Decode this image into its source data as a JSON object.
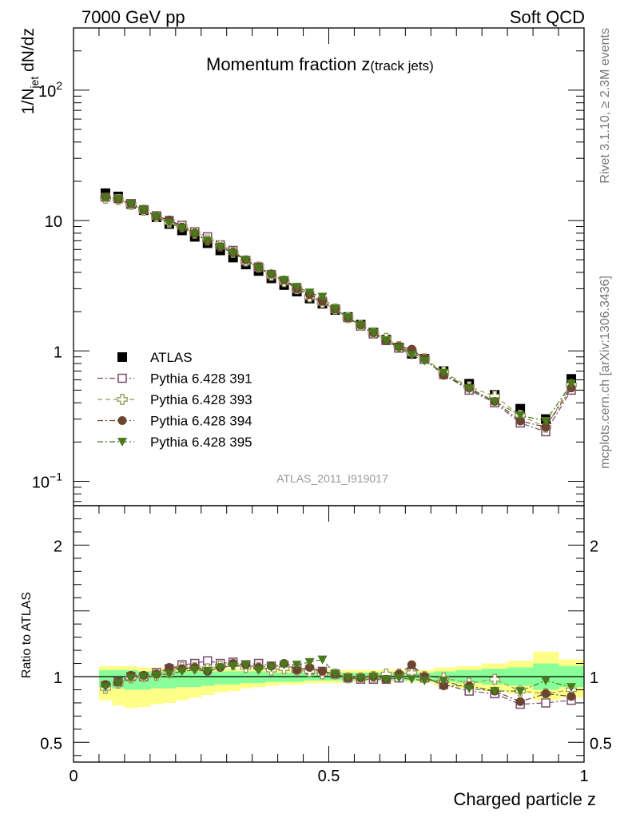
{
  "header": {
    "left": "7000 GeV pp",
    "right": "Soft QCD"
  },
  "side": {
    "rivet": "Rivet 3.1.10, ≥ 2.3M events",
    "mcplots": "mcplots.cern.ch [arXiv:1306.3436]"
  },
  "chart_data": [
    {
      "type": "scatter",
      "panel": "main",
      "title_main": "Momentum fraction z",
      "title_sub": "(track jets)",
      "ylabel": "1/N_jet dN/dz",
      "ylabel_base": "1/N",
      "ylabel_sub": "jet",
      "ylabel_tail": " dN/dz",
      "yscale": "log",
      "ylim": [
        0.065,
        300
      ],
      "xlim": [
        0,
        1
      ],
      "yticks": [
        {
          "v": 0.1,
          "base": "10",
          "exp": "−1"
        },
        {
          "v": 1,
          "base": "1",
          "exp": ""
        },
        {
          "v": 10,
          "base": "10",
          "exp": ""
        },
        {
          "v": 100,
          "base": "10",
          "exp": "2"
        }
      ],
      "watermark": "ATLAS_2011_I919017",
      "x": [
        0.0625,
        0.0875,
        0.1125,
        0.1375,
        0.1625,
        0.1875,
        0.2125,
        0.2375,
        0.2625,
        0.2875,
        0.3125,
        0.3375,
        0.3625,
        0.3875,
        0.4125,
        0.4375,
        0.4625,
        0.4875,
        0.5125,
        0.5375,
        0.5625,
        0.5875,
        0.6125,
        0.6375,
        0.6625,
        0.6875,
        0.725,
        0.775,
        0.825,
        0.875,
        0.925,
        0.975
      ],
      "series": [
        {
          "name": "ATLAS",
          "color": "#000000",
          "marker": "square-filled",
          "line": "none",
          "values": [
            16.2,
            15.3,
            13.4,
            12.0,
            10.6,
            9.4,
            8.4,
            7.5,
            6.7,
            5.9,
            5.2,
            4.6,
            4.1,
            3.6,
            3.2,
            2.85,
            2.52,
            2.3,
            2.06,
            1.82,
            1.59,
            1.38,
            1.22,
            1.06,
            0.95,
            0.87,
            0.7,
            0.56,
            0.46,
            0.36,
            0.3,
            0.61
          ]
        },
        {
          "name": "Pythia 6.428 391",
          "color": "#7a4a6e",
          "marker": "square-open",
          "line": "dashdot",
          "values": [
            15.1,
            14.7,
            13.5,
            12.1,
            10.9,
            10.0,
            9.2,
            8.2,
            7.5,
            6.5,
            5.9,
            4.9,
            4.4,
            3.85,
            3.45,
            3.0,
            2.65,
            2.4,
            2.1,
            1.8,
            1.55,
            1.35,
            1.2,
            1.05,
            0.98,
            0.86,
            0.66,
            0.5,
            0.4,
            0.28,
            0.24,
            0.5
          ]
        },
        {
          "name": "Pythia 6.428 393",
          "color": "#9a9a55",
          "marker": "cross-open",
          "line": "dashed",
          "values": [
            14.8,
            14.5,
            13.3,
            12.0,
            10.7,
            9.7,
            9.0,
            8.0,
            7.1,
            6.4,
            5.7,
            4.9,
            4.4,
            3.8,
            3.4,
            3.0,
            2.6,
            2.35,
            2.1,
            1.8,
            1.57,
            1.38,
            1.25,
            1.08,
            0.98,
            0.87,
            0.69,
            0.53,
            0.45,
            0.32,
            0.26,
            0.55
          ]
        },
        {
          "name": "Pythia 6.428 394",
          "color": "#6b4530",
          "marker": "circle-filled",
          "line": "dashdot",
          "values": [
            15.2,
            14.6,
            13.5,
            12.1,
            10.8,
            10.1,
            8.9,
            8.0,
            7.0,
            6.3,
            5.7,
            5.0,
            4.4,
            3.9,
            3.5,
            3.0,
            2.7,
            2.4,
            2.1,
            1.8,
            1.58,
            1.38,
            1.2,
            1.08,
            1.03,
            0.87,
            0.65,
            0.52,
            0.41,
            0.29,
            0.26,
            0.52
          ]
        },
        {
          "name": "Pythia 6.428 395",
          "color": "#4a7a1c",
          "marker": "triangle-down-filled",
          "line": "dashdot",
          "values": [
            14.9,
            14.6,
            13.3,
            12.0,
            10.7,
            9.6,
            8.7,
            7.9,
            7.0,
            6.3,
            5.6,
            5.0,
            4.3,
            3.85,
            3.5,
            3.1,
            2.8,
            2.6,
            2.1,
            1.8,
            1.57,
            1.38,
            1.2,
            1.05,
            0.93,
            0.84,
            0.68,
            0.51,
            0.41,
            0.32,
            0.29,
            0.56
          ]
        }
      ]
    },
    {
      "type": "scatter",
      "panel": "ratio",
      "ylabel": "Ratio to ATLAS",
      "ylim": [
        0.35,
        2.3
      ],
      "xlim": [
        0,
        1
      ],
      "xlabel": "Charged particle z",
      "yticks": [
        {
          "v": 0.5,
          "t": "0.5"
        },
        {
          "v": 1,
          "t": "1"
        },
        {
          "v": 2,
          "t": "2"
        }
      ],
      "xticks": [
        {
          "v": 0,
          "t": "0"
        },
        {
          "v": 0.5,
          "t": "0.5"
        },
        {
          "v": 1,
          "t": "1"
        }
      ],
      "band_outer_lo": [
        0.82,
        0.78,
        0.76,
        0.77,
        0.79,
        0.8,
        0.82,
        0.84,
        0.86,
        0.88,
        0.89,
        0.91,
        0.92,
        0.93,
        0.94,
        0.94,
        0.95,
        0.95,
        0.95,
        0.96,
        0.96,
        0.96,
        0.96,
        0.96,
        0.96,
        0.95,
        0.93,
        0.91,
        0.89,
        0.87,
        0.82,
        0.84
      ],
      "band_outer_hi": [
        1.08,
        1.08,
        1.08,
        1.07,
        1.07,
        1.06,
        1.06,
        1.06,
        1.06,
        1.06,
        1.06,
        1.05,
        1.05,
        1.05,
        1.05,
        1.05,
        1.05,
        1.05,
        1.05,
        1.05,
        1.05,
        1.05,
        1.05,
        1.05,
        1.05,
        1.05,
        1.07,
        1.08,
        1.1,
        1.12,
        1.19,
        1.13
      ],
      "band_inner_lo": [
        0.92,
        0.91,
        0.9,
        0.9,
        0.91,
        0.91,
        0.92,
        0.92,
        0.93,
        0.94,
        0.94,
        0.95,
        0.95,
        0.96,
        0.96,
        0.96,
        0.97,
        0.97,
        0.97,
        0.97,
        0.97,
        0.97,
        0.97,
        0.97,
        0.97,
        0.97,
        0.96,
        0.95,
        0.94,
        0.93,
        0.9,
        0.92
      ],
      "band_inner_hi": [
        1.05,
        1.05,
        1.05,
        1.04,
        1.04,
        1.04,
        1.04,
        1.04,
        1.04,
        1.04,
        1.04,
        1.04,
        1.04,
        1.03,
        1.03,
        1.03,
        1.03,
        1.03,
        1.03,
        1.03,
        1.03,
        1.03,
        1.03,
        1.03,
        1.03,
        1.03,
        1.04,
        1.05,
        1.06,
        1.07,
        1.1,
        1.08
      ],
      "series": [
        {
          "name": "Pythia 6.428 391",
          "color": "#7a4a6e",
          "marker": "square-open",
          "line": "dashdot",
          "values": [
            0.93,
            0.96,
            1.0,
            1.0,
            1.03,
            1.06,
            1.09,
            1.1,
            1.12,
            1.1,
            1.11,
            1.09,
            1.1,
            1.08,
            1.08,
            1.06,
            1.05,
            1.04,
            1.02,
            0.99,
            0.98,
            0.98,
            0.98,
            0.99,
            1.03,
            0.99,
            0.94,
            0.89,
            0.87,
            0.79,
            0.8,
            0.82
          ]
        },
        {
          "name": "Pythia 6.428 393",
          "color": "#9a9a55",
          "marker": "cross-open",
          "line": "dashed",
          "values": [
            0.91,
            0.95,
            0.99,
            1.0,
            1.01,
            1.03,
            1.07,
            1.07,
            1.06,
            1.08,
            1.09,
            1.07,
            1.07,
            1.05,
            1.06,
            1.05,
            1.04,
            1.02,
            1.02,
            0.99,
            0.99,
            1.0,
            1.02,
            1.02,
            1.03,
            1.0,
            0.99,
            0.95,
            0.98,
            0.89,
            0.87,
            0.9
          ]
        },
        {
          "name": "Pythia 6.428 394",
          "color": "#6b4530",
          "marker": "circle-filled",
          "line": "dashdot",
          "values": [
            0.94,
            0.96,
            1.01,
            1.01,
            1.02,
            1.07,
            1.06,
            1.07,
            1.04,
            1.07,
            1.1,
            1.09,
            1.07,
            1.08,
            1.1,
            1.05,
            1.07,
            1.04,
            1.02,
            0.99,
            0.99,
            1.0,
            0.98,
            1.02,
            1.09,
            1.0,
            0.93,
            0.93,
            0.89,
            0.81,
            0.87,
            0.85
          ]
        },
        {
          "name": "Pythia 6.428 395",
          "color": "#4a7a1c",
          "marker": "triangle-down-filled",
          "line": "dashdot",
          "values": [
            0.92,
            0.95,
            0.99,
            1.0,
            1.01,
            1.02,
            1.04,
            1.05,
            1.04,
            1.07,
            1.08,
            1.09,
            1.05,
            1.07,
            1.09,
            1.09,
            1.11,
            1.13,
            1.02,
            0.99,
            0.99,
            1.0,
            0.98,
            0.99,
            0.98,
            0.97,
            0.97,
            0.91,
            0.89,
            0.89,
            0.97,
            0.92
          ]
        }
      ]
    }
  ]
}
